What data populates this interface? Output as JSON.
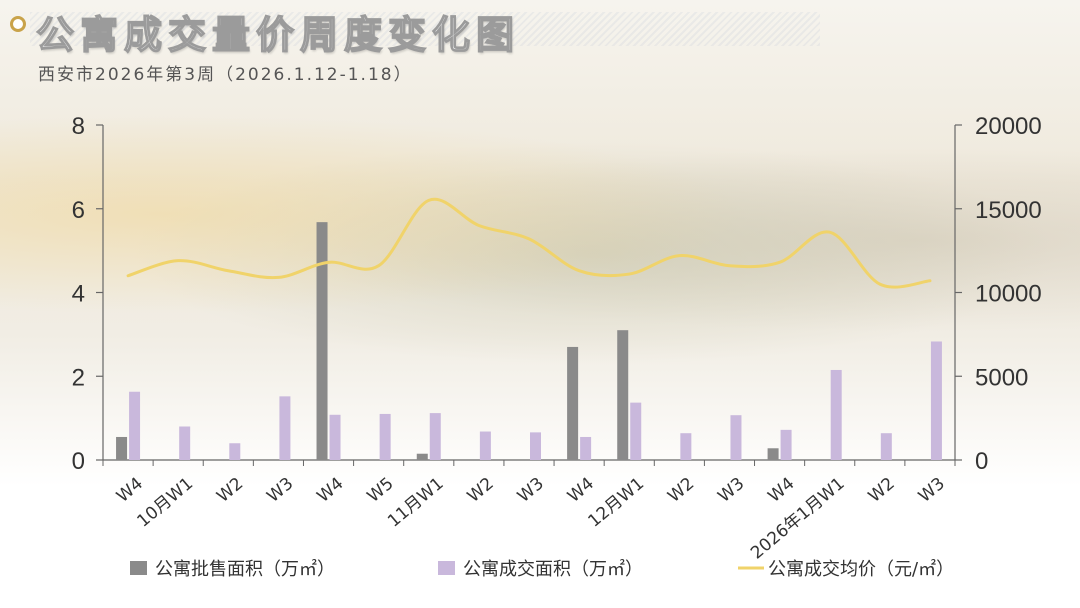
{
  "header": {
    "title": "公寓成交量价周度变化图",
    "subtitle": "西安市2026年第3周（2026.1.12-1.18）"
  },
  "colors": {
    "supply": "#8a8a8a",
    "deal_area": "#c9b8dc",
    "price": "#f0d36a",
    "title_dot": "#c9a34a"
  },
  "chart_data": {
    "type": "bar",
    "categories": [
      "W4",
      "10月W1",
      "W2",
      "W3",
      "W4",
      "W5",
      "11月W1",
      "W2",
      "W3",
      "W4",
      "12月W1",
      "W2",
      "W3",
      "W4",
      "2026年1月W1",
      "W2",
      "W3"
    ],
    "series": [
      {
        "name": "公寓批售面积（万㎡）",
        "type": "bar",
        "axis": "left",
        "values": [
          0.55,
          0,
          0,
          0,
          5.68,
          0,
          0.15,
          0,
          0,
          2.7,
          3.1,
          0,
          0,
          0.28,
          0,
          0,
          0
        ]
      },
      {
        "name": "公寓成交面积（万㎡）",
        "type": "bar",
        "axis": "left",
        "values": [
          1.63,
          0.8,
          0.4,
          1.52,
          1.08,
          1.1,
          1.12,
          0.68,
          0.66,
          0.55,
          1.37,
          0.64,
          1.07,
          0.72,
          2.15,
          0.64,
          2.83
        ]
      },
      {
        "name": "公寓成交均价（元/㎡）",
        "type": "line",
        "axis": "right",
        "values": [
          11000,
          11900,
          11300,
          10900,
          11800,
          11600,
          15500,
          14000,
          13200,
          11300,
          11100,
          12200,
          11600,
          11800,
          13600,
          10500,
          10700
        ]
      }
    ],
    "y_left": {
      "ticks": [
        "0",
        "2",
        "4",
        "6",
        "8"
      ],
      "range": [
        0,
        8
      ]
    },
    "y_right": {
      "ticks": [
        "0",
        "5000",
        "10000",
        "15000",
        "20000"
      ],
      "range": [
        0,
        20000
      ]
    },
    "legend": [
      {
        "label": "公寓批售面积（万㎡）",
        "kind": "bar",
        "color": "#8a8a8a"
      },
      {
        "label": "公寓成交面积（万㎡）",
        "kind": "bar",
        "color": "#c9b8dc"
      },
      {
        "label": "公寓成交均价（元/㎡）",
        "kind": "line",
        "color": "#f0d36a"
      }
    ],
    "legend_position": "bottom",
    "grid": false
  }
}
